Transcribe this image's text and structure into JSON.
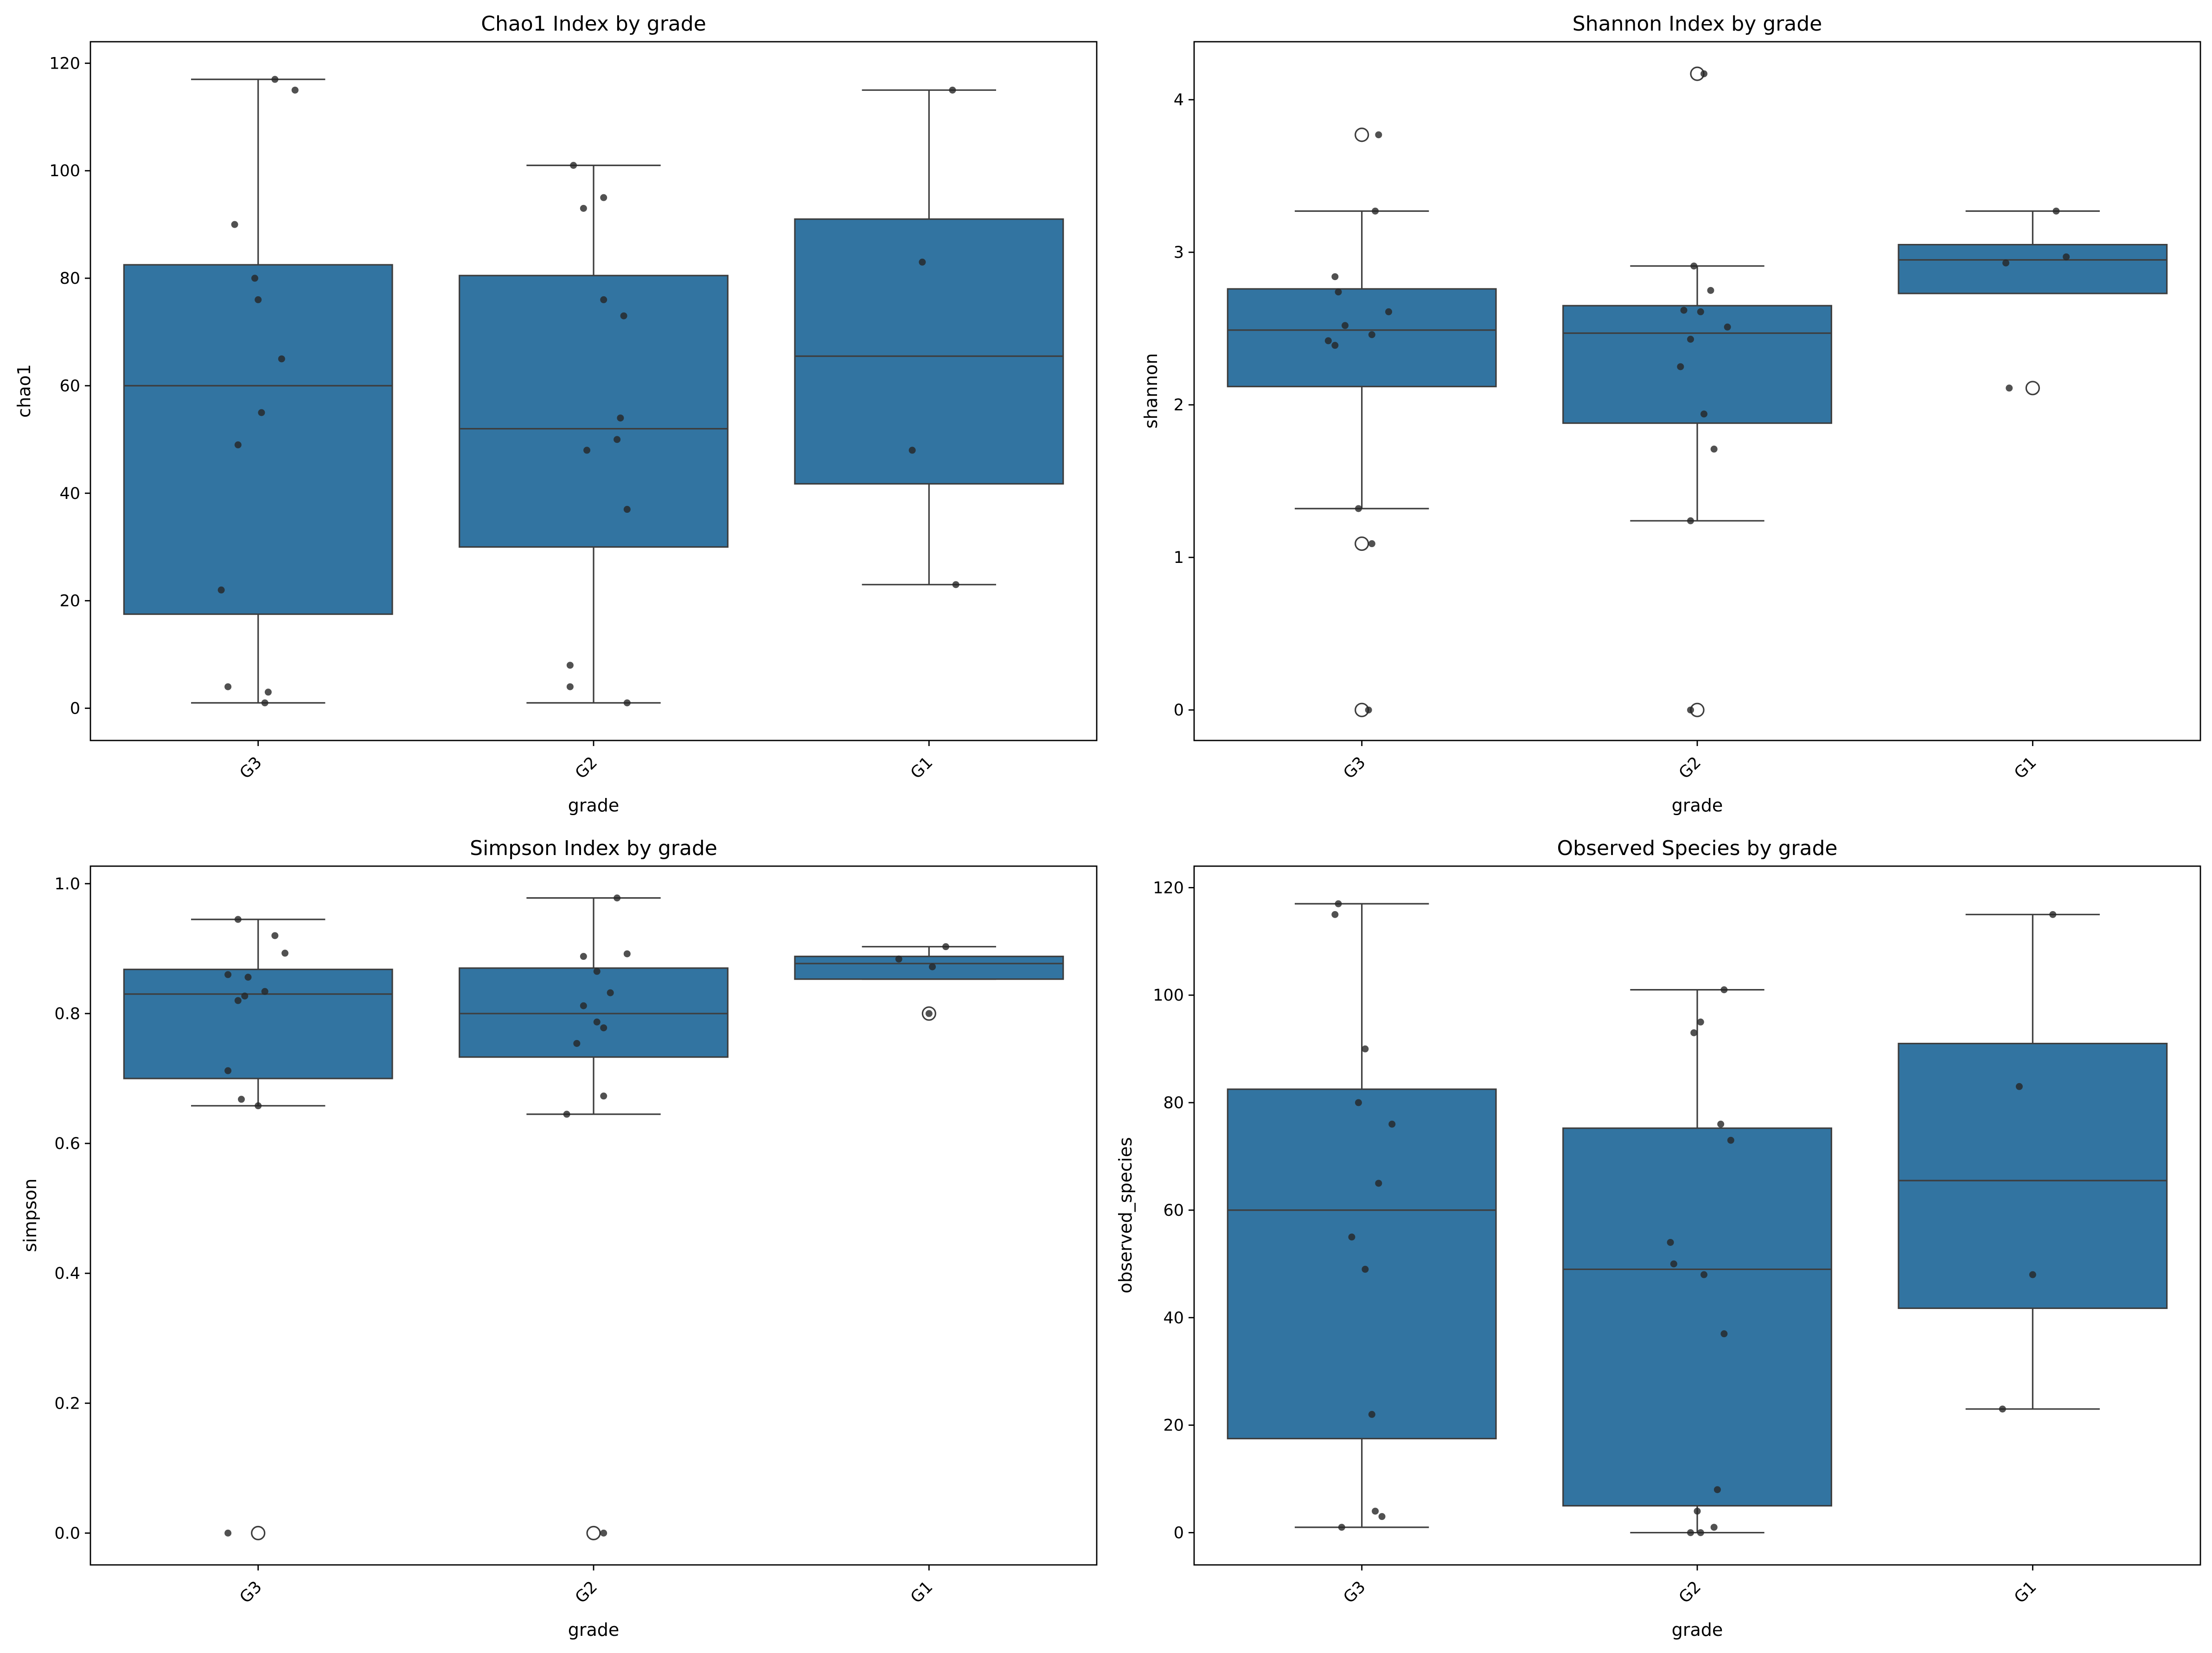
{
  "colors": {
    "box_fill": "#3274a1",
    "line": "#3d3d3d",
    "point": "#262626",
    "frame": "#000000",
    "background": "#ffffff"
  },
  "chart_data": [
    {
      "type": "box",
      "title": "Chao1 Index by grade",
      "xlabel": "grade",
      "ylabel": "chao1",
      "categories": [
        "G3",
        "G2",
        "G1"
      ],
      "ylim": [
        -6,
        124
      ],
      "yticks": [
        0,
        20,
        40,
        60,
        80,
        100,
        120
      ],
      "ytick_labels": [
        "0",
        "20",
        "40",
        "60",
        "80",
        "100",
        "120"
      ],
      "boxes": [
        {
          "category": "G3",
          "q1": 17.5,
          "median": 60,
          "q3": 82.5,
          "whisker_low": 1,
          "whisker_high": 117,
          "outliers": []
        },
        {
          "category": "G2",
          "q1": 30,
          "median": 52,
          "q3": 80.5,
          "whisker_low": 1,
          "whisker_high": 101,
          "outliers": []
        },
        {
          "category": "G1",
          "q1": 41.75,
          "median": 65.5,
          "q3": 91,
          "whisker_low": 23,
          "whisker_high": 115,
          "outliers": []
        }
      ],
      "points": [
        {
          "category": "G3",
          "values": [
            117,
            115,
            90,
            80,
            76,
            65,
            55,
            49,
            22,
            4,
            3,
            1
          ],
          "jitter": [
            0.05,
            0.11,
            -0.07,
            -0.01,
            0.0,
            0.07,
            0.01,
            -0.06,
            -0.11,
            -0.09,
            0.03,
            0.02
          ]
        },
        {
          "category": "G2",
          "values": [
            101,
            95,
            93,
            76,
            73,
            54,
            50,
            48,
            37,
            8,
            4,
            1
          ],
          "jitter": [
            -0.06,
            0.03,
            -0.03,
            0.03,
            0.09,
            0.08,
            0.07,
            -0.02,
            0.1,
            -0.07,
            -0.07,
            0.1
          ]
        },
        {
          "category": "G1",
          "values": [
            115,
            83,
            48,
            23
          ],
          "jitter": [
            0.07,
            -0.02,
            -0.05,
            0.08
          ]
        }
      ]
    },
    {
      "type": "box",
      "title": "Shannon Index by grade",
      "xlabel": "grade",
      "ylabel": "shannon",
      "categories": [
        "G3",
        "G2",
        "G1"
      ],
      "ylim": [
        -0.2,
        4.38
      ],
      "yticks": [
        0,
        1,
        2,
        3,
        4
      ],
      "ytick_labels": [
        "0",
        "1",
        "2",
        "3",
        "4"
      ],
      "boxes": [
        {
          "category": "G3",
          "q1": 2.12,
          "median": 2.49,
          "q3": 2.76,
          "whisker_low": 1.32,
          "whisker_high": 3.27,
          "outliers": [
            3.77,
            1.09,
            0.0
          ]
        },
        {
          "category": "G2",
          "q1": 1.88,
          "median": 2.47,
          "q3": 2.65,
          "whisker_low": 1.24,
          "whisker_high": 2.91,
          "outliers": [
            4.17,
            0.0
          ]
        },
        {
          "category": "G1",
          "q1": 2.73,
          "median": 2.95,
          "q3": 3.05,
          "whisker_low": 2.73,
          "whisker_high": 3.27,
          "outliers": [
            2.11
          ]
        }
      ],
      "points": [
        {
          "category": "G3",
          "values": [
            3.77,
            3.27,
            2.84,
            2.74,
            2.61,
            2.52,
            2.46,
            2.42,
            2.39,
            1.32,
            1.09,
            0.0
          ],
          "jitter": [
            0.05,
            0.04,
            -0.08,
            -0.07,
            0.08,
            -0.05,
            0.03,
            -0.1,
            -0.08,
            -0.01,
            0.03,
            0.02
          ]
        },
        {
          "category": "G2",
          "values": [
            4.17,
            2.91,
            2.75,
            2.62,
            2.61,
            2.51,
            2.43,
            2.25,
            1.94,
            1.71,
            1.24,
            0.0
          ],
          "jitter": [
            0.02,
            -0.01,
            0.04,
            -0.04,
            0.01,
            0.09,
            -0.02,
            -0.05,
            0.02,
            0.05,
            -0.02,
            -0.02
          ]
        },
        {
          "category": "G1",
          "values": [
            3.27,
            2.97,
            2.93,
            2.11
          ],
          "jitter": [
            0.07,
            0.1,
            -0.08,
            -0.07
          ]
        }
      ]
    },
    {
      "type": "box",
      "title": "Simpson Index by grade",
      "xlabel": "grade",
      "ylabel": "simpson",
      "categories": [
        "G3",
        "G2",
        "G1"
      ],
      "ylim": [
        -0.049,
        1.027
      ],
      "yticks": [
        0.0,
        0.2,
        0.4,
        0.6,
        0.8,
        1.0
      ],
      "ytick_labels": [
        "0.0",
        "0.2",
        "0.4",
        "0.6",
        "0.8",
        "1.0"
      ],
      "boxes": [
        {
          "category": "G3",
          "q1": 0.7,
          "median": 0.83,
          "q3": 0.868,
          "whisker_low": 0.658,
          "whisker_high": 0.945,
          "outliers": [
            0.0
          ]
        },
        {
          "category": "G2",
          "q1": 0.733,
          "median": 0.8,
          "q3": 0.87,
          "whisker_low": 0.645,
          "whisker_high": 0.978,
          "outliers": [
            0.0
          ]
        },
        {
          "category": "G1",
          "q1": 0.853,
          "median": 0.877,
          "q3": 0.888,
          "whisker_low": 0.853,
          "whisker_high": 0.903,
          "outliers": [
            0.8
          ]
        }
      ],
      "points": [
        {
          "category": "G3",
          "values": [
            0.945,
            0.92,
            0.893,
            0.86,
            0.856,
            0.834,
            0.827,
            0.82,
            0.712,
            0.668,
            0.658,
            0.0
          ],
          "jitter": [
            -0.06,
            0.05,
            0.08,
            -0.09,
            -0.03,
            0.02,
            -0.04,
            -0.06,
            -0.09,
            -0.05,
            0.0,
            -0.09
          ]
        },
        {
          "category": "G2",
          "values": [
            0.978,
            0.892,
            0.888,
            0.865,
            0.832,
            0.812,
            0.787,
            0.778,
            0.754,
            0.673,
            0.645,
            0.0
          ],
          "jitter": [
            0.07,
            0.1,
            -0.03,
            0.01,
            0.05,
            -0.03,
            0.01,
            0.03,
            -0.05,
            0.03,
            -0.08,
            0.03
          ]
        },
        {
          "category": "G1",
          "values": [
            0.903,
            0.884,
            0.872,
            0.8
          ],
          "jitter": [
            0.05,
            -0.09,
            0.01,
            0.0
          ]
        }
      ]
    },
    {
      "type": "box",
      "title": "Observed Species by grade",
      "xlabel": "grade",
      "ylabel": "observed_species",
      "categories": [
        "G3",
        "G2",
        "G1"
      ],
      "ylim": [
        -6,
        124
      ],
      "yticks": [
        0,
        20,
        40,
        60,
        80,
        100,
        120
      ],
      "ytick_labels": [
        "0",
        "20",
        "40",
        "60",
        "80",
        "100",
        "120"
      ],
      "boxes": [
        {
          "category": "G3",
          "q1": 17.5,
          "median": 60,
          "q3": 82.5,
          "whisker_low": 1,
          "whisker_high": 117,
          "outliers": []
        },
        {
          "category": "G2",
          "q1": 5,
          "median": 49,
          "q3": 75.25,
          "whisker_low": 0,
          "whisker_high": 101,
          "outliers": []
        },
        {
          "category": "G1",
          "q1": 41.75,
          "median": 65.5,
          "q3": 91,
          "whisker_low": 23,
          "whisker_high": 115,
          "outliers": []
        }
      ],
      "points": [
        {
          "category": "G3",
          "values": [
            117,
            115,
            90,
            80,
            76,
            65,
            55,
            49,
            22,
            4,
            3,
            1
          ],
          "jitter": [
            -0.07,
            -0.08,
            0.01,
            -0.01,
            0.09,
            0.05,
            -0.03,
            0.01,
            0.03,
            0.04,
            0.06,
            -0.06
          ]
        },
        {
          "category": "G2",
          "values": [
            101,
            95,
            93,
            76,
            73,
            54,
            50,
            48,
            37,
            8,
            4,
            1,
            0,
            0
          ],
          "jitter": [
            0.08,
            0.01,
            -0.01,
            0.07,
            0.1,
            -0.08,
            -0.07,
            0.02,
            0.08,
            0.06,
            0.0,
            0.05,
            -0.02,
            0.01
          ]
        },
        {
          "category": "G1",
          "values": [
            115,
            83,
            48,
            23
          ],
          "jitter": [
            0.06,
            -0.04,
            0.0,
            -0.09
          ]
        }
      ]
    }
  ]
}
